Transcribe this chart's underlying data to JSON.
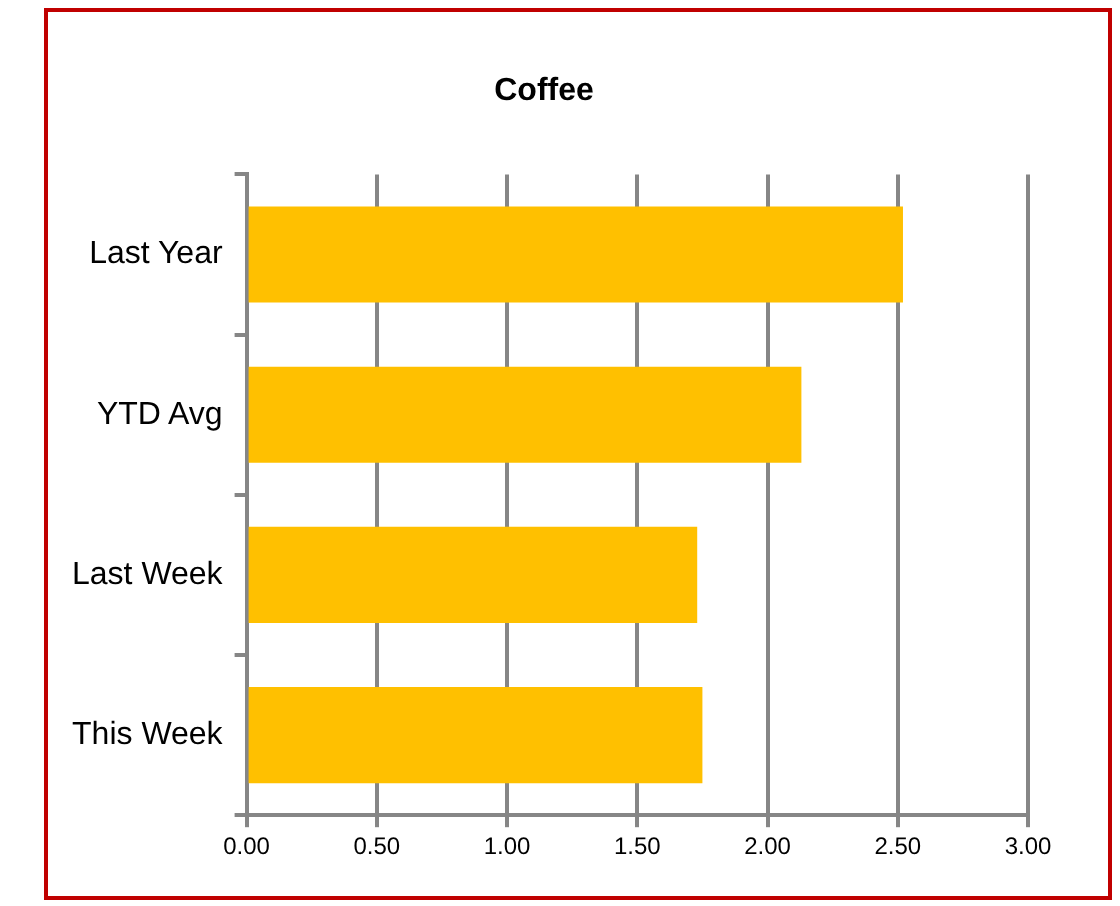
{
  "chart_data": {
    "type": "bar",
    "orientation": "horizontal",
    "title": "Coffee",
    "categories": [
      "Last Year",
      "YTD Avg",
      "Last Week",
      "This Week"
    ],
    "values": [
      2.52,
      2.13,
      1.73,
      1.75
    ],
    "color": "#ffc000",
    "xlim": [
      0,
      3
    ],
    "xticks": [
      {
        "value": 0,
        "label": "0.00"
      },
      {
        "value": 0.5,
        "label": "0.50"
      },
      {
        "value": 1,
        "label": "1.00"
      },
      {
        "value": 1.5,
        "label": "1.50"
      },
      {
        "value": 2,
        "label": "2.00"
      },
      {
        "value": 2.5,
        "label": "2.50"
      },
      {
        "value": 3,
        "label": "3.00"
      }
    ],
    "grid": "x",
    "legend": false
  }
}
